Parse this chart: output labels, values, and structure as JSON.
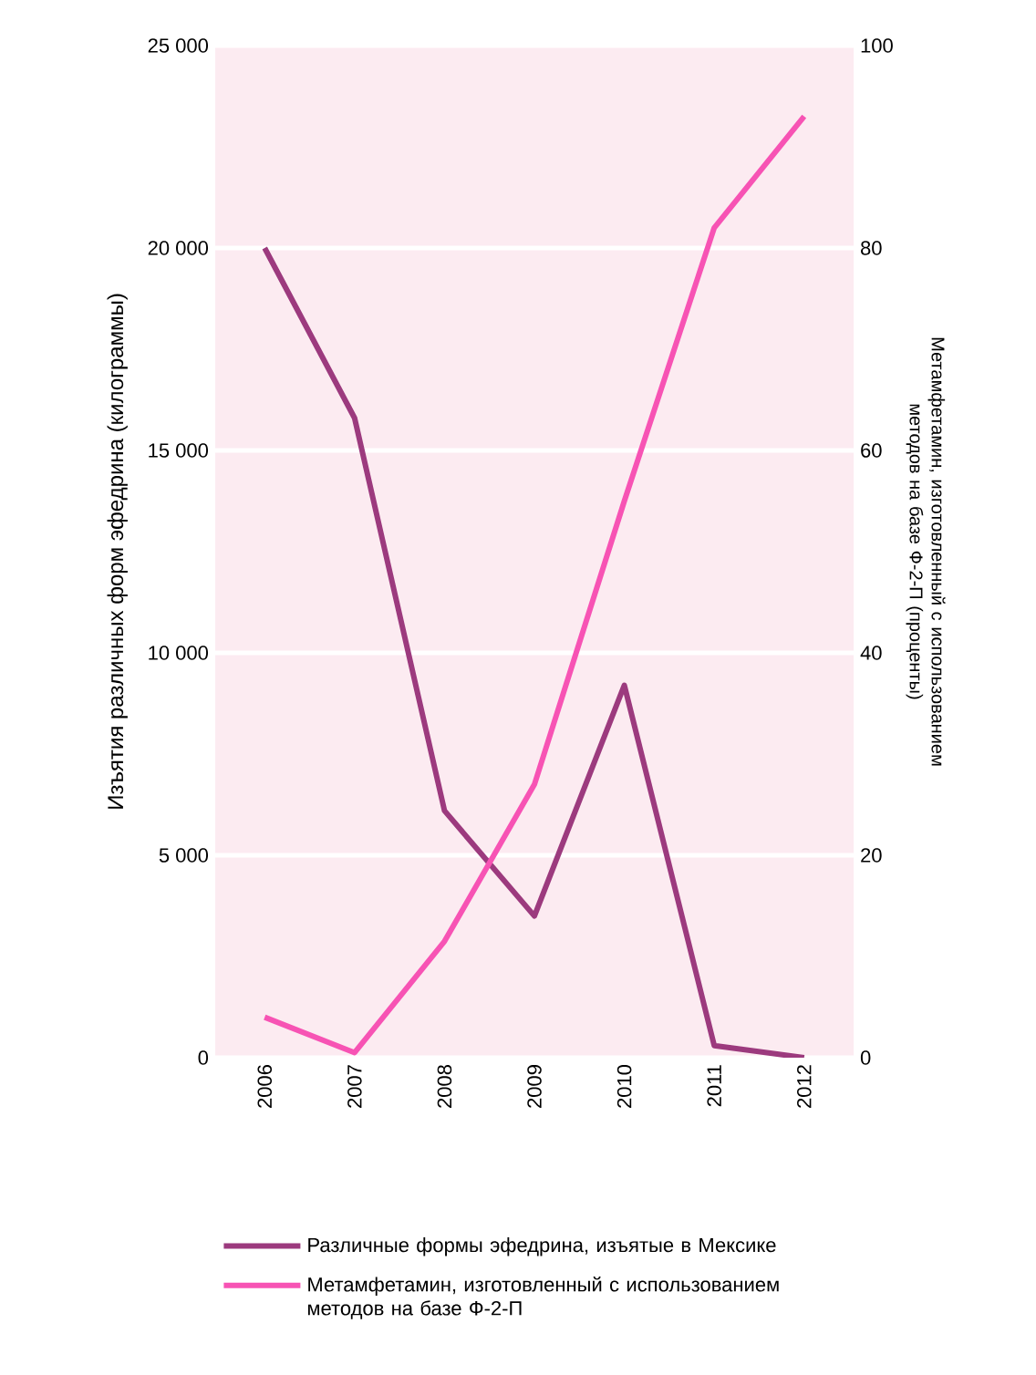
{
  "chart_data": {
    "type": "line",
    "ylabel": "Изъятия различных форм эфедрина (килограммы)",
    "y2label": "Метамфетамин, изготовленный с использованием методов на базе Ф-2-П (проценты)",
    "categories": [
      "2006",
      "2007",
      "2008",
      "2009",
      "2010",
      "2011",
      "2012"
    ],
    "series": [
      {
        "name": "Различные формы эфедрина, изъятые в Мексике",
        "color": "#9c3a7e",
        "values": [
          20000,
          15800,
          6100,
          3500,
          9200,
          300,
          0
        ]
      },
      {
        "name": "Метамфетамин, изготовленный с использованием методов на базе Ф-2-П",
        "color": "#f753b4",
        "axis": "y2",
        "values": [
          4,
          0.5,
          11.5,
          27,
          55,
          82,
          93
        ]
      }
    ],
    "ylim": [
      0,
      25000
    ],
    "yticks": [
      0,
      {
        "value": 5000,
        "label": "5 000"
      },
      {
        "value": 10000,
        "label": "10 000"
      },
      {
        "value": 15000,
        "label": "15 000"
      },
      {
        "value": 20000,
        "label": "20 000"
      },
      {
        "value": 25000,
        "label": "25 000"
      }
    ],
    "y2lim": [
      0,
      100
    ],
    "y2ticks": [
      0,
      20,
      40,
      60,
      80,
      100
    ],
    "grid": "y",
    "legend": "bottom",
    "marker": "none",
    "line_style": "solid"
  }
}
